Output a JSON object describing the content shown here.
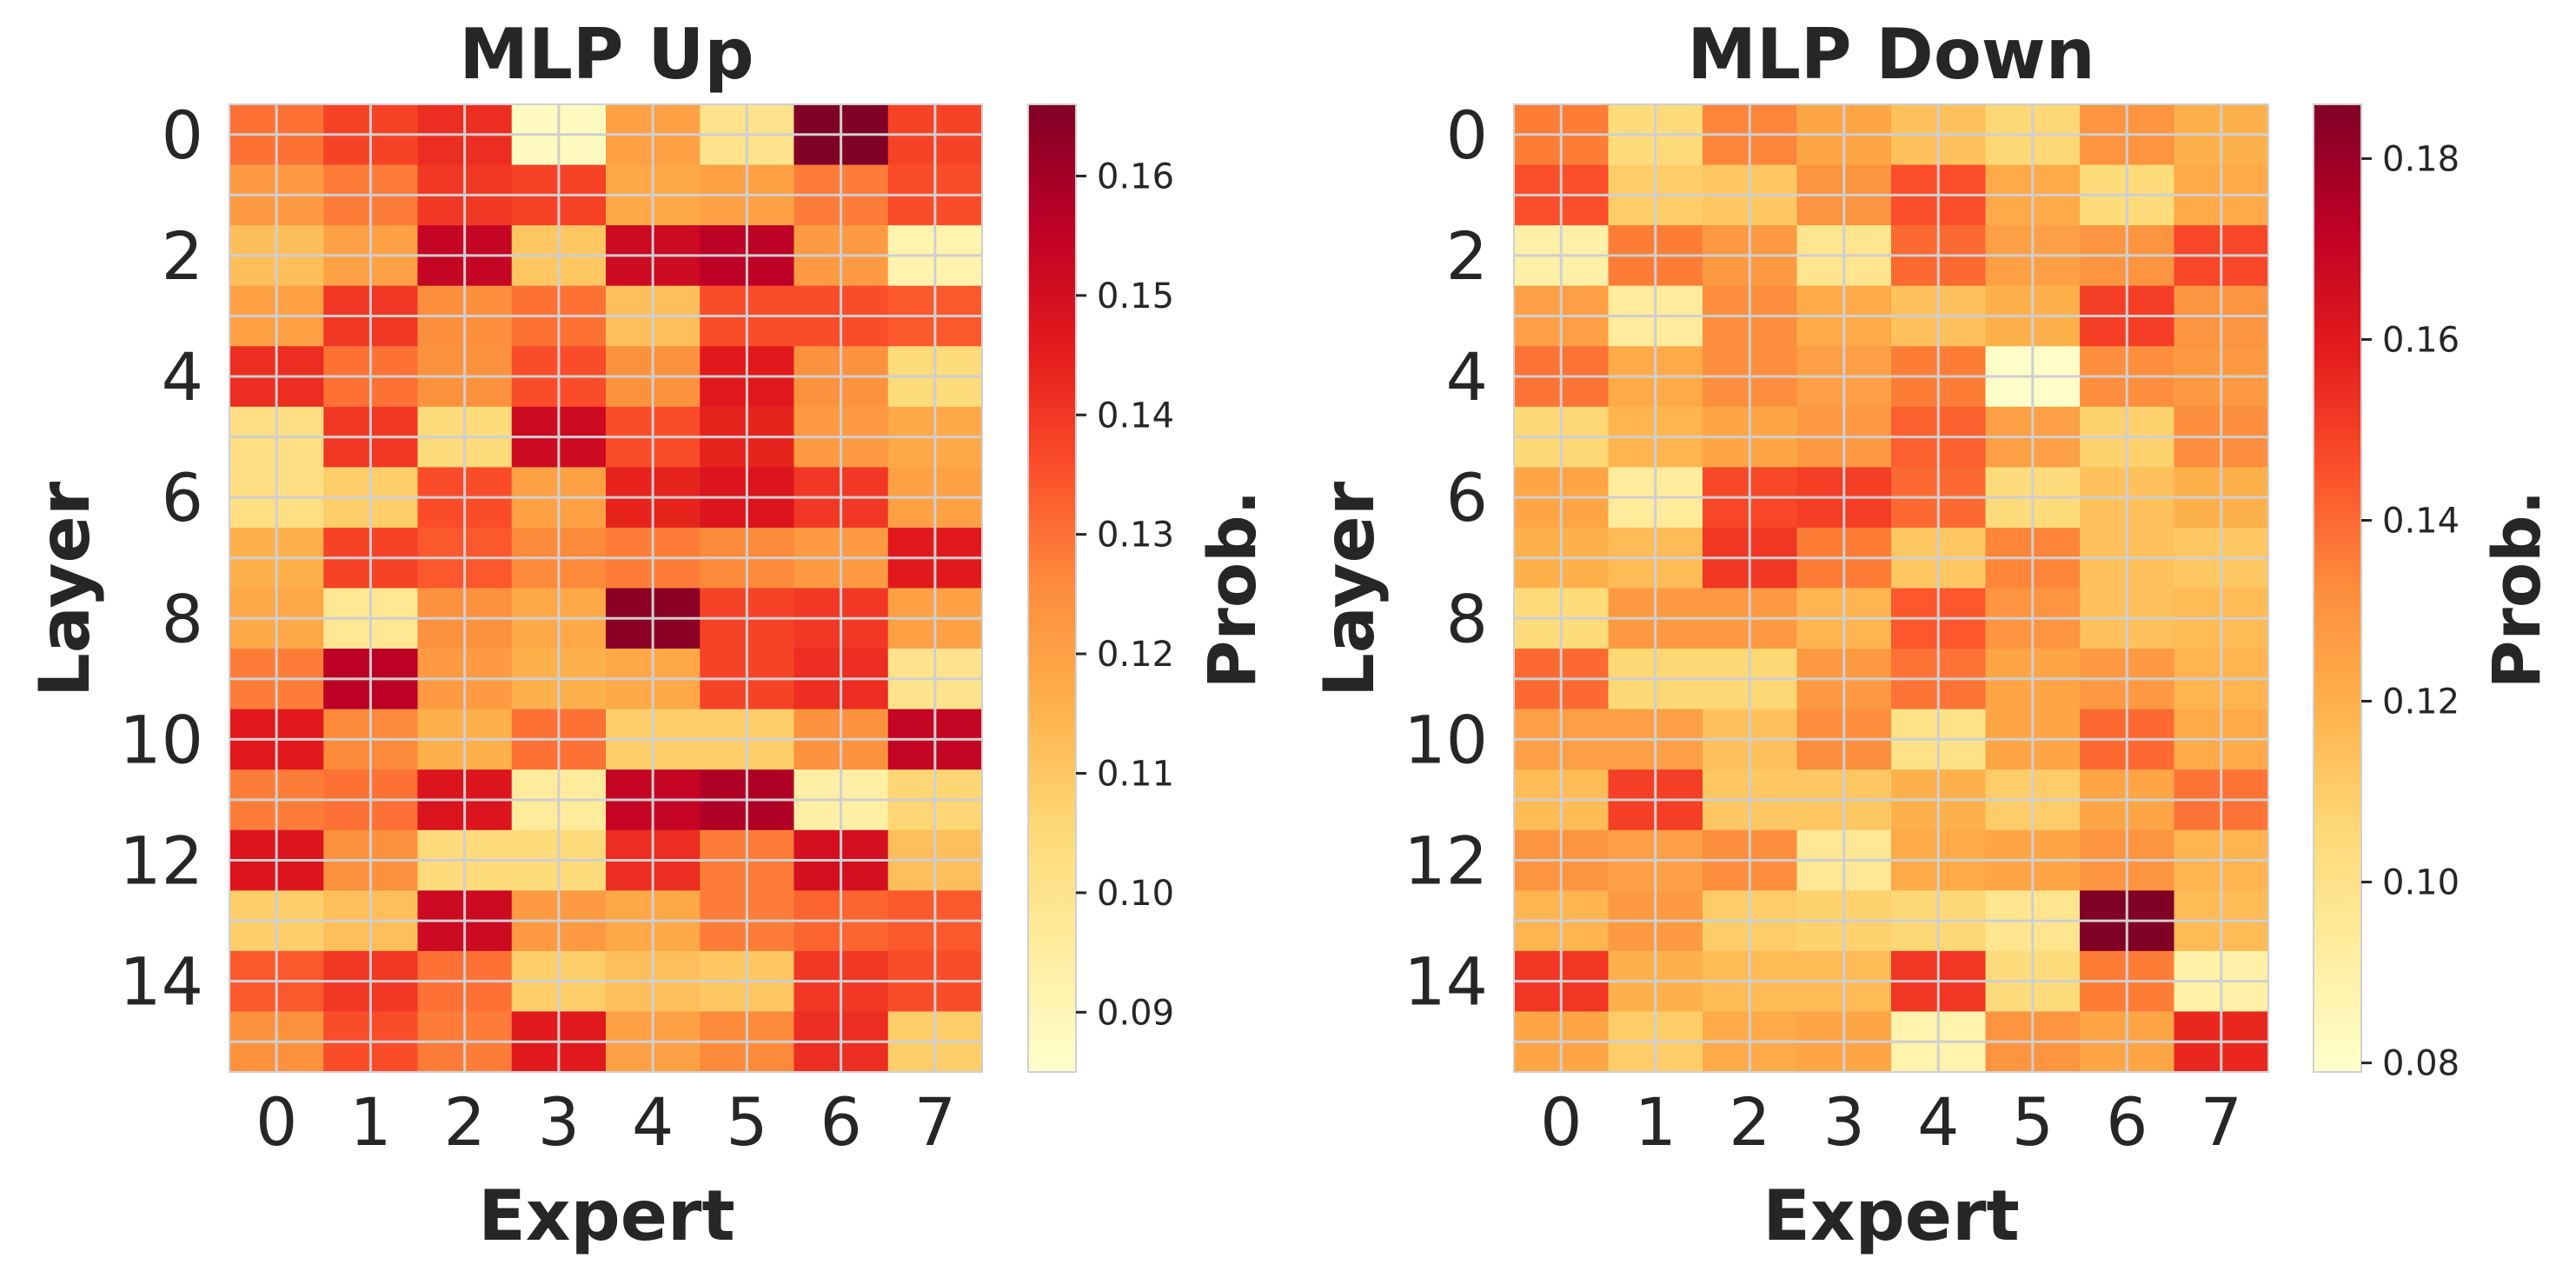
{
  "chart_data": [
    {
      "type": "heatmap",
      "title": "MLP Up",
      "xlabel": "Expert",
      "ylabel": "Layer",
      "colorbar_label": "Prob.",
      "colormap": "YlOrRd",
      "x_categories": [
        "0",
        "1",
        "2",
        "3",
        "4",
        "5",
        "6",
        "7"
      ],
      "y_categories": [
        "0",
        "1",
        "2",
        "3",
        "4",
        "5",
        "6",
        "7",
        "8",
        "9",
        "10",
        "11",
        "12",
        "13",
        "14",
        "15"
      ],
      "x_ticks": [
        "0",
        "1",
        "2",
        "3",
        "4",
        "5",
        "6",
        "7"
      ],
      "y_ticks": [
        "0",
        "2",
        "4",
        "6",
        "8",
        "10",
        "12",
        "14"
      ],
      "colorbar_range": [
        0.085,
        0.166
      ],
      "colorbar_ticks": [
        "0.09",
        "0.10",
        "0.11",
        "0.12",
        "0.13",
        "0.14",
        "0.15",
        "0.16"
      ],
      "values": [
        [
          0.13,
          0.138,
          0.142,
          0.088,
          0.12,
          0.1,
          0.166,
          0.138
        ],
        [
          0.122,
          0.128,
          0.14,
          0.138,
          0.118,
          0.12,
          0.128,
          0.136
        ],
        [
          0.112,
          0.12,
          0.154,
          0.11,
          0.152,
          0.156,
          0.122,
          0.092
        ],
        [
          0.12,
          0.14,
          0.125,
          0.13,
          0.112,
          0.136,
          0.136,
          0.134
        ],
        [
          0.142,
          0.13,
          0.124,
          0.136,
          0.124,
          0.146,
          0.124,
          0.104
        ],
        [
          0.102,
          0.14,
          0.104,
          0.152,
          0.136,
          0.144,
          0.122,
          0.118
        ],
        [
          0.102,
          0.108,
          0.136,
          0.12,
          0.144,
          0.148,
          0.14,
          0.12
        ],
        [
          0.116,
          0.138,
          0.134,
          0.126,
          0.128,
          0.126,
          0.122,
          0.146
        ],
        [
          0.118,
          0.098,
          0.124,
          0.118,
          0.164,
          0.138,
          0.14,
          0.12
        ],
        [
          0.128,
          0.156,
          0.122,
          0.116,
          0.118,
          0.138,
          0.142,
          0.1
        ],
        [
          0.146,
          0.126,
          0.116,
          0.13,
          0.108,
          0.108,
          0.124,
          0.154
        ],
        [
          0.128,
          0.13,
          0.148,
          0.096,
          0.154,
          0.158,
          0.094,
          0.106
        ],
        [
          0.148,
          0.124,
          0.104,
          0.104,
          0.142,
          0.128,
          0.15,
          0.112
        ],
        [
          0.108,
          0.112,
          0.152,
          0.122,
          0.118,
          0.128,
          0.132,
          0.134
        ],
        [
          0.134,
          0.14,
          0.13,
          0.108,
          0.112,
          0.11,
          0.14,
          0.136
        ],
        [
          0.124,
          0.136,
          0.128,
          0.146,
          0.12,
          0.126,
          0.142,
          0.108
        ]
      ]
    },
    {
      "type": "heatmap",
      "title": "MLP Down",
      "xlabel": "Expert",
      "ylabel": "Layer",
      "colorbar_label": "Prob.",
      "colormap": "YlOrRd",
      "x_categories": [
        "0",
        "1",
        "2",
        "3",
        "4",
        "5",
        "6",
        "7"
      ],
      "y_categories": [
        "0",
        "1",
        "2",
        "3",
        "4",
        "5",
        "6",
        "7",
        "8",
        "9",
        "10",
        "11",
        "12",
        "13",
        "14",
        "15"
      ],
      "x_ticks": [
        "0",
        "1",
        "2",
        "3",
        "4",
        "5",
        "6",
        "7"
      ],
      "y_ticks": [
        "0",
        "2",
        "4",
        "6",
        "8",
        "10",
        "12",
        "14"
      ],
      "colorbar_range": [
        0.079,
        0.186
      ],
      "colorbar_ticks": [
        "0.08",
        "0.10",
        "0.12",
        "0.14",
        "0.16",
        "0.18"
      ],
      "values": [
        [
          0.136,
          0.104,
          0.134,
          0.124,
          0.114,
          0.106,
          0.13,
          0.12
        ],
        [
          0.146,
          0.11,
          0.112,
          0.13,
          0.146,
          0.122,
          0.104,
          0.122
        ],
        [
          0.09,
          0.136,
          0.128,
          0.098,
          0.14,
          0.126,
          0.13,
          0.148
        ],
        [
          0.126,
          0.094,
          0.132,
          0.122,
          0.114,
          0.12,
          0.15,
          0.13
        ],
        [
          0.138,
          0.122,
          0.132,
          0.126,
          0.136,
          0.08,
          0.132,
          0.128
        ],
        [
          0.106,
          0.118,
          0.124,
          0.128,
          0.142,
          0.126,
          0.108,
          0.132
        ],
        [
          0.124,
          0.094,
          0.148,
          0.15,
          0.14,
          0.104,
          0.114,
          0.12
        ],
        [
          0.12,
          0.116,
          0.152,
          0.136,
          0.112,
          0.134,
          0.114,
          0.112
        ],
        [
          0.104,
          0.128,
          0.128,
          0.118,
          0.144,
          0.13,
          0.114,
          0.116
        ],
        [
          0.14,
          0.106,
          0.106,
          0.128,
          0.138,
          0.124,
          0.128,
          0.118
        ],
        [
          0.126,
          0.126,
          0.114,
          0.132,
          0.1,
          0.124,
          0.14,
          0.122
        ],
        [
          0.116,
          0.15,
          0.112,
          0.112,
          0.12,
          0.11,
          0.124,
          0.138
        ],
        [
          0.13,
          0.126,
          0.132,
          0.096,
          0.122,
          0.124,
          0.13,
          0.118
        ],
        [
          0.118,
          0.128,
          0.11,
          0.108,
          0.106,
          0.098,
          0.186,
          0.116
        ],
        [
          0.152,
          0.12,
          0.116,
          0.116,
          0.152,
          0.104,
          0.136,
          0.09
        ],
        [
          0.124,
          0.11,
          0.122,
          0.124,
          0.088,
          0.13,
          0.124,
          0.156
        ]
      ]
    }
  ]
}
